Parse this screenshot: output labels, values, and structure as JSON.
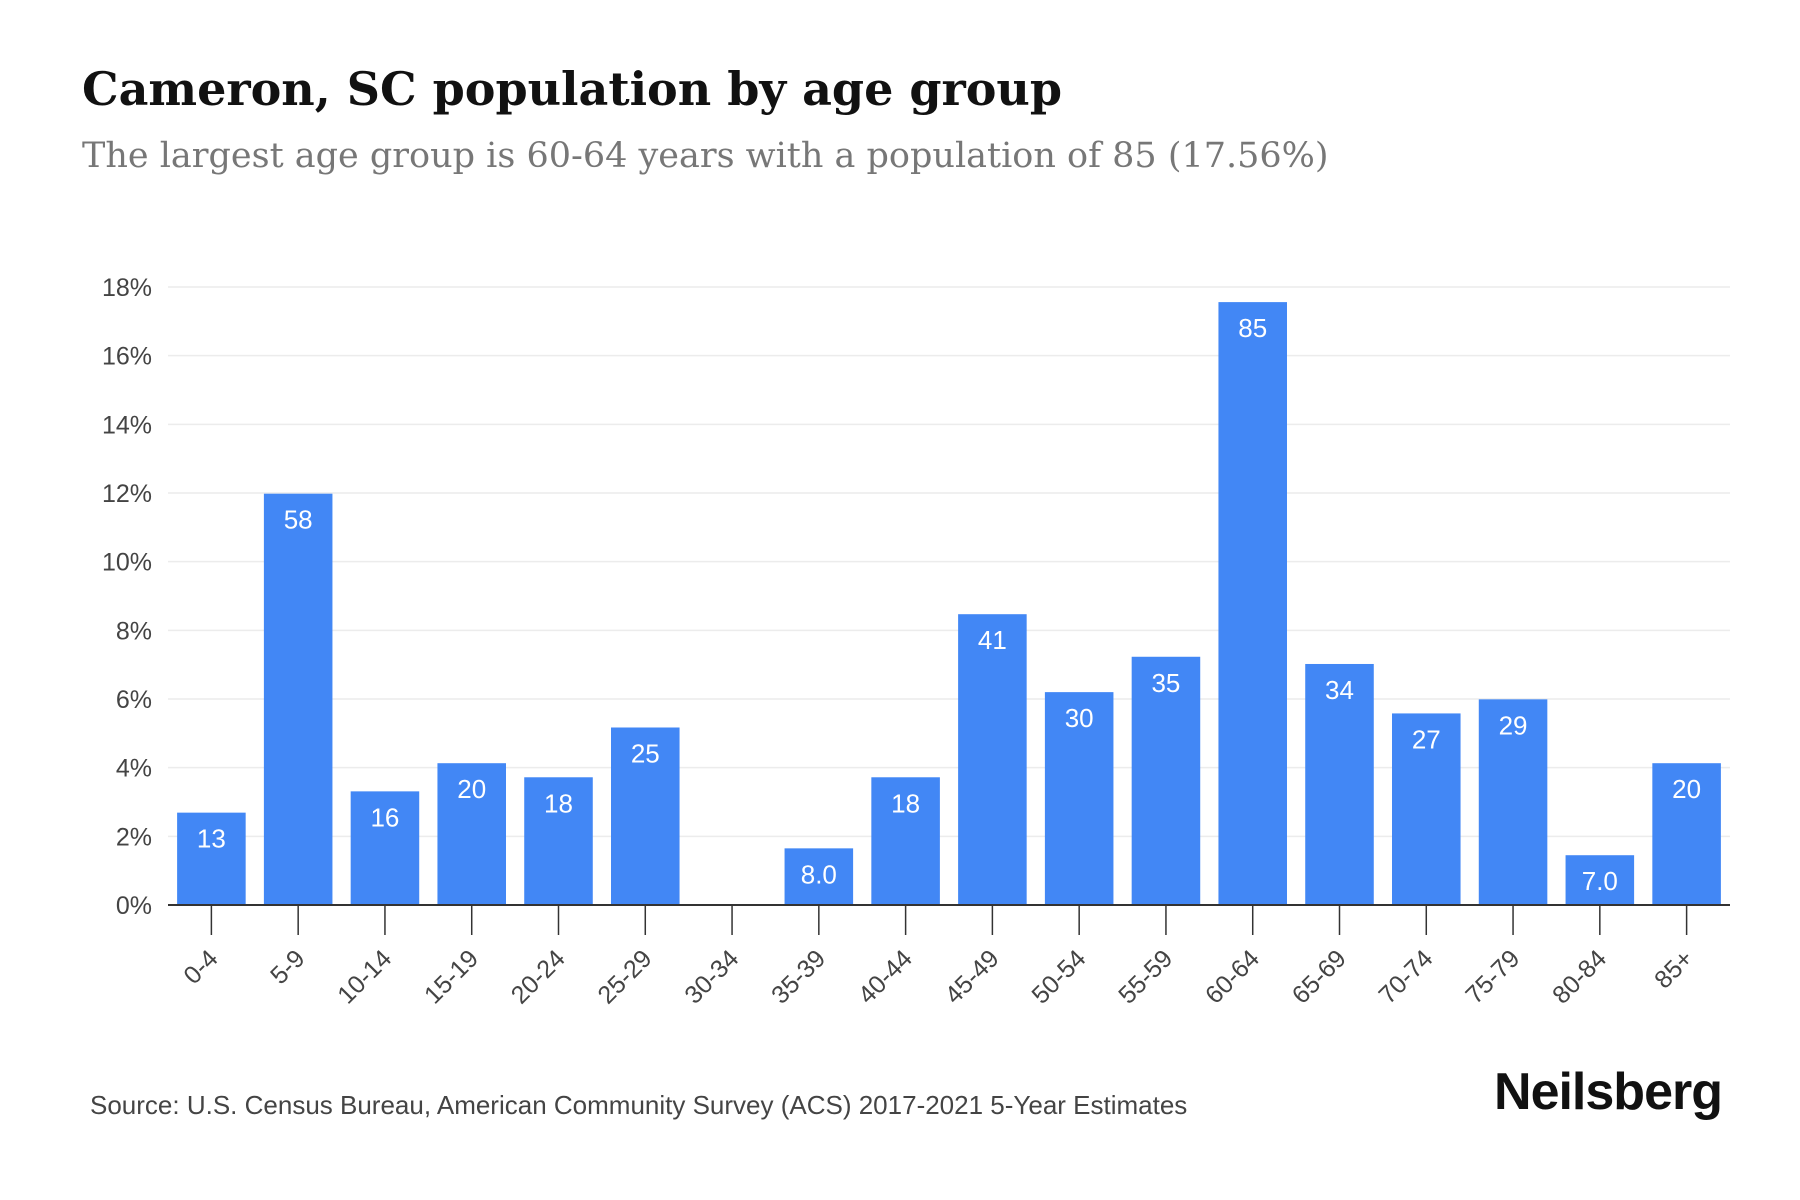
{
  "title": "Cameron, SC population by age group",
  "subtitle": "The largest age group is 60-64 years with a population of 85 (17.56%)",
  "source": "Source: U.S. Census Bureau, American Community Survey (ACS) 2017-2021 5-Year Estimates",
  "brand": "Neilsberg",
  "colors": {
    "bar": "#4287f5",
    "grid": "#ececec",
    "axis": "#333333",
    "tick_text": "#444444",
    "label_text": "#ffffff"
  },
  "chart_data": {
    "type": "bar",
    "categories": [
      "0-4",
      "5-9",
      "10-14",
      "15-19",
      "20-24",
      "25-29",
      "30-34",
      "35-39",
      "40-44",
      "45-49",
      "50-54",
      "55-59",
      "60-64",
      "65-69",
      "70-74",
      "75-79",
      "80-84",
      "85+"
    ],
    "values": [
      2.69,
      11.98,
      3.31,
      4.13,
      3.72,
      5.17,
      0,
      1.65,
      3.72,
      8.47,
      6.2,
      7.23,
      17.56,
      7.02,
      5.58,
      5.99,
      1.45,
      4.13
    ],
    "data_labels": [
      "13",
      "58",
      "16",
      "20",
      "18",
      "25",
      "",
      "8.0",
      "18",
      "41",
      "30",
      "35",
      "85",
      "34",
      "27",
      "29",
      "7.0",
      "20"
    ],
    "ylim": [
      0,
      18
    ],
    "yticks": [
      0,
      2,
      4,
      6,
      8,
      10,
      12,
      14,
      16,
      18
    ],
    "ytick_labels": [
      "0%",
      "2%",
      "4%",
      "6%",
      "8%",
      "10%",
      "12%",
      "14%",
      "16%",
      "18%"
    ],
    "grid": true,
    "legend": "none"
  }
}
